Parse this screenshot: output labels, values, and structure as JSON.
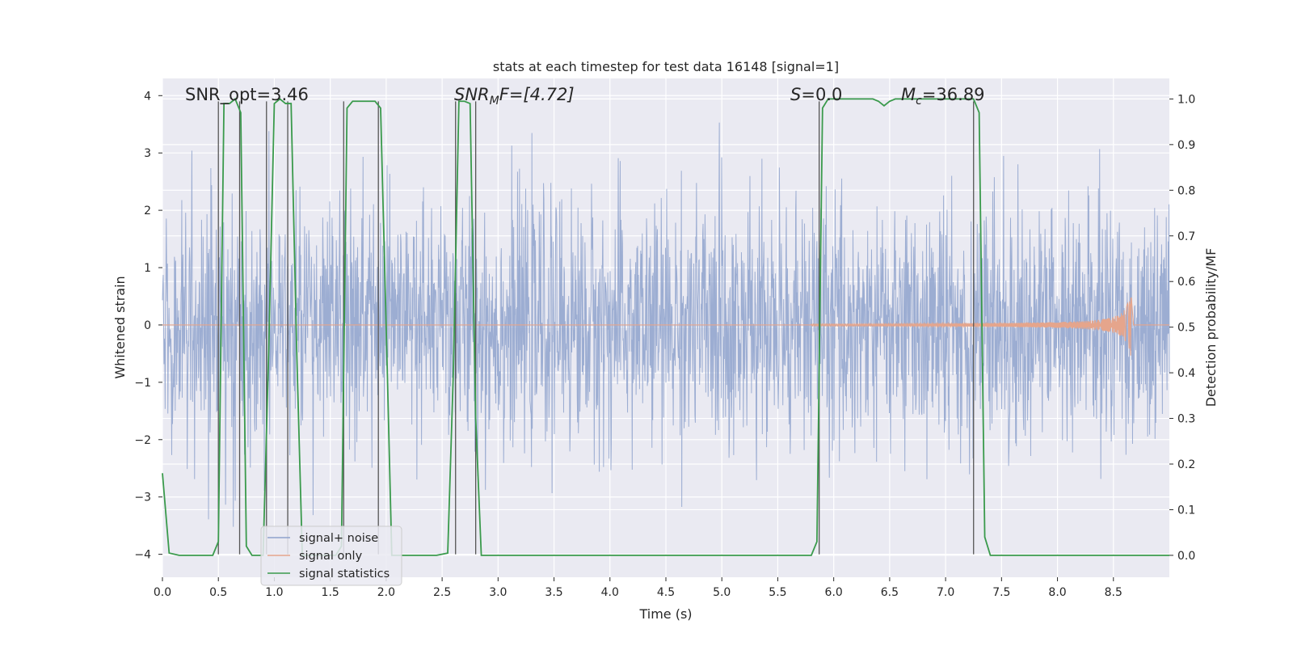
{
  "chart_data": {
    "type": "line",
    "title": "stats at each timestep for test data 16148 [signal=1]",
    "xlabel": "Time (s)",
    "ylabel": "Whitened strain",
    "ylabel_right": "Detection probability/MF",
    "xlim": [
      0.0,
      9.0
    ],
    "ylim": [
      -4.4,
      4.3
    ],
    "ylim_right": [
      -0.048,
      1.045
    ],
    "x_ticks": [
      0.0,
      0.5,
      1.0,
      1.5,
      2.0,
      2.5,
      3.0,
      3.5,
      4.0,
      4.5,
      5.0,
      5.5,
      6.0,
      6.5,
      7.0,
      7.5,
      8.0,
      8.5
    ],
    "x_tick_labels": [
      "0.0",
      "0.5",
      "1.0",
      "1.5",
      "2.0",
      "2.5",
      "3.0",
      "3.5",
      "4.0",
      "4.5",
      "5.0",
      "5.5",
      "6.0",
      "6.5",
      "7.0",
      "7.5",
      "8.0",
      "8.5"
    ],
    "y_ticks": [
      -4,
      -3,
      -2,
      -1,
      0,
      1,
      2,
      3,
      4
    ],
    "y_tick_labels": [
      "−4",
      "−3",
      "−2",
      "−1",
      "0",
      "1",
      "2",
      "3",
      "4"
    ],
    "y_ticks_right": [
      0.0,
      0.1,
      0.2,
      0.3,
      0.4,
      0.5,
      0.6,
      0.7,
      0.8,
      0.9,
      1.0
    ],
    "y_tick_labels_right": [
      "0.0",
      "0.1",
      "0.2",
      "0.3",
      "0.4",
      "0.5",
      "0.6",
      "0.7",
      "0.8",
      "0.9",
      "1.0"
    ],
    "grid": true,
    "legend_position": "lower-left",
    "series": [
      {
        "name": "signal+ noise",
        "axis": "left",
        "color": "#8ea2cc",
        "style": "noise",
        "x_range": [
          0.0,
          9.0
        ],
        "amplitude_sd": 1.0,
        "peak_range": [
          -3.7,
          3.7
        ]
      },
      {
        "name": "signal only",
        "axis": "left",
        "color": "#e5a58c",
        "style": "chirp",
        "x_start": 5.8,
        "x_end": 8.66,
        "peak_amplitude": 0.9
      },
      {
        "name": "signal statistics",
        "axis": "right",
        "color": "#3a9a4c",
        "style": "line",
        "x": [
          0.0,
          0.06,
          0.15,
          0.45,
          0.5,
          0.55,
          0.6,
          0.65,
          0.7,
          0.75,
          0.8,
          0.9,
          0.95,
          1.0,
          1.05,
          1.1,
          1.15,
          1.2,
          1.25,
          1.55,
          1.6,
          1.65,
          1.7,
          1.75,
          1.8,
          1.9,
          1.95,
          2.0,
          2.05,
          2.45,
          2.55,
          2.6,
          2.65,
          2.7,
          2.75,
          2.8,
          2.85,
          2.9,
          5.8,
          5.85,
          5.9,
          5.95,
          6.35,
          6.4,
          6.45,
          6.5,
          6.55,
          7.25,
          7.3,
          7.35,
          7.4,
          9.0
        ],
        "y": [
          0.18,
          0.005,
          0.0,
          0.0,
          0.03,
          0.99,
          0.99,
          1.0,
          0.97,
          0.02,
          0.0,
          0.0,
          0.45,
          0.99,
          1.0,
          0.99,
          0.99,
          0.45,
          0.0,
          0.0,
          0.02,
          0.98,
          0.995,
          0.995,
          0.995,
          0.995,
          0.98,
          0.5,
          0.0,
          0.0,
          0.005,
          0.4,
          0.995,
          0.995,
          0.99,
          0.3,
          0.0,
          0.0,
          0.0,
          0.03,
          0.98,
          1.0,
          1.0,
          0.995,
          0.985,
          0.995,
          1.0,
          1.0,
          0.97,
          0.04,
          0.0,
          0.0
        ]
      }
    ],
    "event_lines": {
      "color": "#555555",
      "axis": "left",
      "lines": [
        {
          "x": 0.5,
          "y_top": 3.9,
          "y_bottom": -4.0
        },
        {
          "x": 0.69,
          "y_top": 3.9,
          "y_bottom": -4.0
        },
        {
          "x": 0.93,
          "y_top": 3.9,
          "y_bottom": -4.0
        },
        {
          "x": 1.12,
          "y_top": 3.9,
          "y_bottom": -4.0
        },
        {
          "x": 1.62,
          "y_top": 3.9,
          "y_bottom": -4.0
        },
        {
          "x": 1.93,
          "y_top": 3.9,
          "y_bottom": -4.0
        },
        {
          "x": 2.62,
          "y_top": 3.9,
          "y_bottom": -4.0
        },
        {
          "x": 2.8,
          "y_top": 3.9,
          "y_bottom": -4.0
        },
        {
          "x": 5.87,
          "y_top": 3.9,
          "y_bottom": -4.0
        },
        {
          "x": 7.25,
          "y_top": 3.9,
          "y_bottom": -4.0
        }
      ]
    },
    "annotations": [
      {
        "id": "snr-opt",
        "text": "SNR_opt=3.46",
        "x": 0.2,
        "y": 4.0,
        "italic": false
      },
      {
        "id": "snr-mf",
        "text_main": "SNR",
        "text_sub": "M",
        "text_tail": "F=[4.72]",
        "x": 2.6,
        "y": 4.0,
        "italic": true
      },
      {
        "id": "s-stat",
        "text_main": "S",
        "text_tail": "=0.0",
        "x": 5.6,
        "y": 4.0,
        "italic": true
      },
      {
        "id": "chirp-mass",
        "text_main": "M",
        "text_sub": "c",
        "text_tail": "=36.89",
        "x": 6.6,
        "y": 4.0,
        "italic": true
      }
    ]
  }
}
